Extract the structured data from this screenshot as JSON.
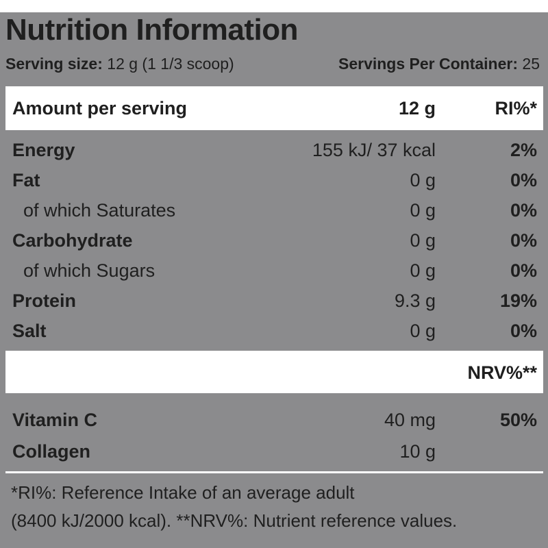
{
  "title": "Nutrition Information",
  "serving": {
    "size_label": "Serving size:",
    "size_value": "12 g (1 1/3 scoop)",
    "per_container_label": "Servings Per Container:",
    "per_container_value": "25"
  },
  "header": {
    "label": "Amount per serving",
    "amount": "12 g",
    "ri": "RI%*"
  },
  "nutrients": [
    {
      "name": "Energy",
      "amount": "155 kJ/ 37 kcal",
      "ri": "2%"
    },
    {
      "name": "Fat",
      "amount": "0 g",
      "ri": "0%"
    },
    {
      "name": "of which Saturates",
      "amount": "0 g",
      "ri": "0%"
    },
    {
      "name": "Carbohydrate",
      "amount": "0 g",
      "ri": "0%"
    },
    {
      "name": "of which Sugars",
      "amount": "0 g",
      "ri": "0%"
    },
    {
      "name": "Protein",
      "amount": "9.3 g",
      "ri": "19%"
    },
    {
      "name": "Salt",
      "amount": "0 g",
      "ri": "0%"
    }
  ],
  "nrv_header": "NRV%**",
  "vitamins": [
    {
      "name": "Vitamin C",
      "amount": "40 mg",
      "nrv": "50%"
    },
    {
      "name": "Collagen",
      "amount": "10 g",
      "nrv": ""
    }
  ],
  "footnote": {
    "line1": "*RI%: Reference Intake of an average adult",
    "line2": "(8400 kJ/2000 kcal). **NRV%: Nutrient reference values."
  },
  "colors": {
    "panel": "#8b8b8d",
    "band": "#ffffff",
    "text": "#1f1f1f"
  }
}
